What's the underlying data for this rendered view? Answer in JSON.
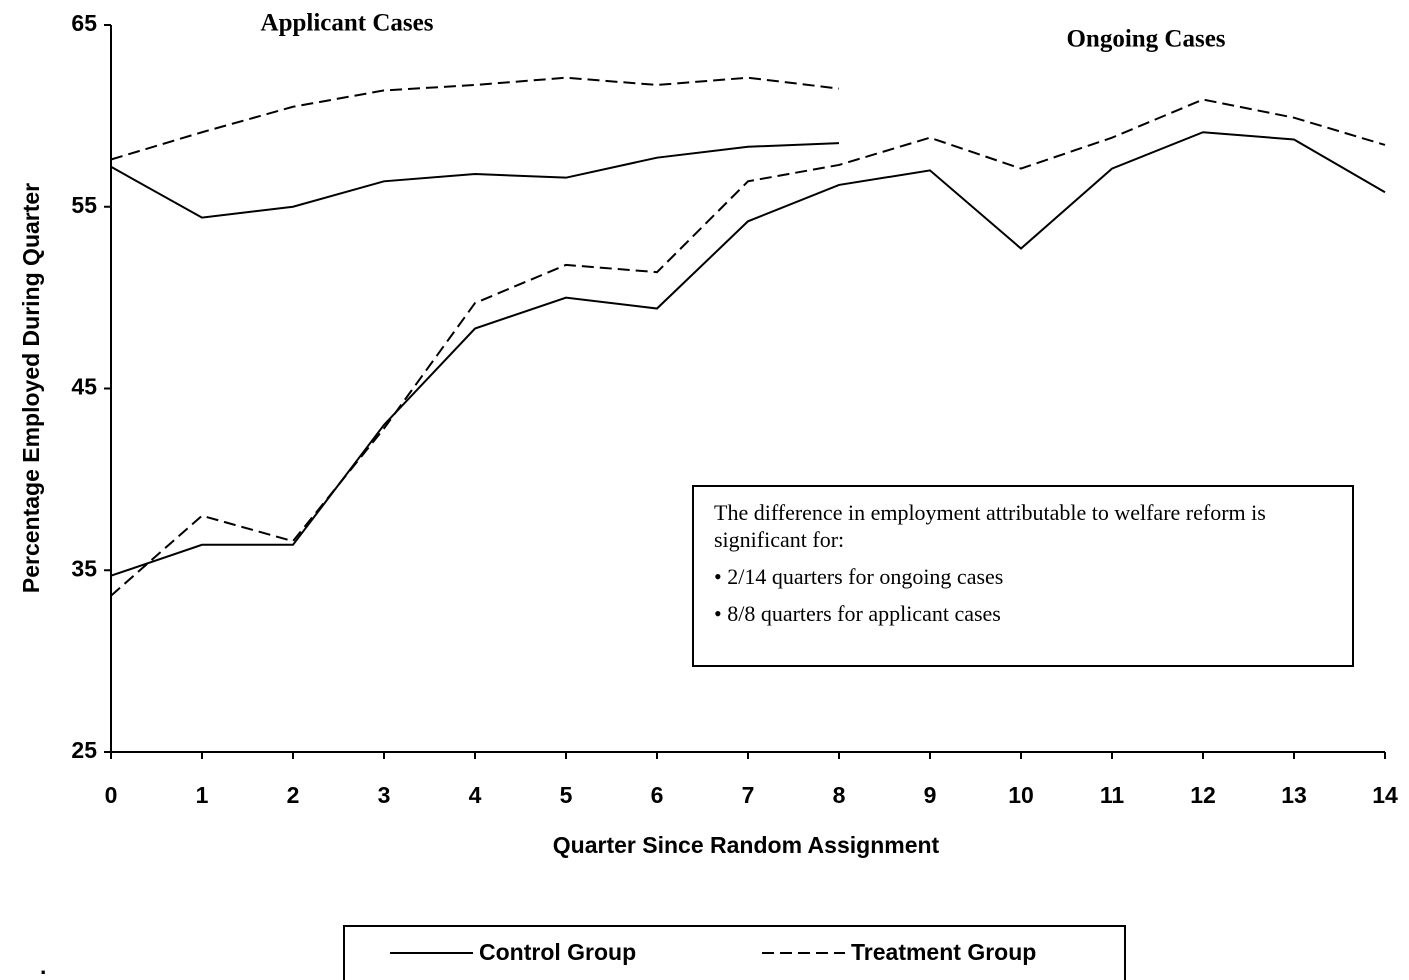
{
  "chart_data": {
    "type": "line",
    "y_label": "Percentage Employed During Quarter",
    "x_label": "Quarter Since Random Assignment",
    "x": [
      0,
      1,
      2,
      3,
      4,
      5,
      6,
      7,
      8,
      9,
      10,
      11,
      12,
      13,
      14
    ],
    "xlim": [
      0,
      14
    ],
    "ylim": [
      25,
      65
    ],
    "xticks": [
      0,
      1,
      2,
      3,
      4,
      5,
      6,
      7,
      8,
      9,
      10,
      11,
      12,
      13,
      14
    ],
    "yticks": [
      25,
      35,
      45,
      55,
      65
    ],
    "groups": [
      {
        "label": "Applicant Cases",
        "series": [
          {
            "name": "Control Group",
            "color": "#000000",
            "dashed": false,
            "values": [
              57.2,
              54.4,
              55.0,
              56.4,
              56.8,
              56.6,
              57.7,
              58.3,
              58.5,
              null,
              null,
              null,
              null,
              null,
              null
            ]
          },
          {
            "name": "Treatment Group",
            "color": "#000000",
            "dashed": true,
            "values": [
              57.6,
              59.1,
              60.5,
              61.4,
              61.7,
              62.1,
              61.7,
              62.1,
              61.5,
              null,
              null,
              null,
              null,
              null,
              null
            ]
          }
        ]
      },
      {
        "label": "Ongoing Cases",
        "series": [
          {
            "name": "Control Group",
            "color": "#000000",
            "dashed": false,
            "values": [
              34.7,
              36.4,
              36.4,
              43.0,
              48.3,
              50.0,
              49.4,
              54.2,
              56.2,
              57.0,
              52.7,
              57.1,
              59.1,
              58.7,
              55.8
            ]
          },
          {
            "name": "Treatment Group",
            "color": "#000000",
            "dashed": true,
            "values": [
              33.6,
              38.0,
              36.6,
              42.8,
              49.7,
              51.8,
              51.4,
              56.4,
              57.3,
              58.8,
              57.1,
              58.8,
              60.9,
              59.9,
              58.4
            ]
          }
        ]
      }
    ],
    "note": {
      "text": "The difference in employment attributable to welfare reform is significant for:",
      "bullets": [
        "• 2/14 quarters for ongoing cases",
        "• 8/8 quarters for applicant cases"
      ]
    },
    "footnote": "."
  }
}
